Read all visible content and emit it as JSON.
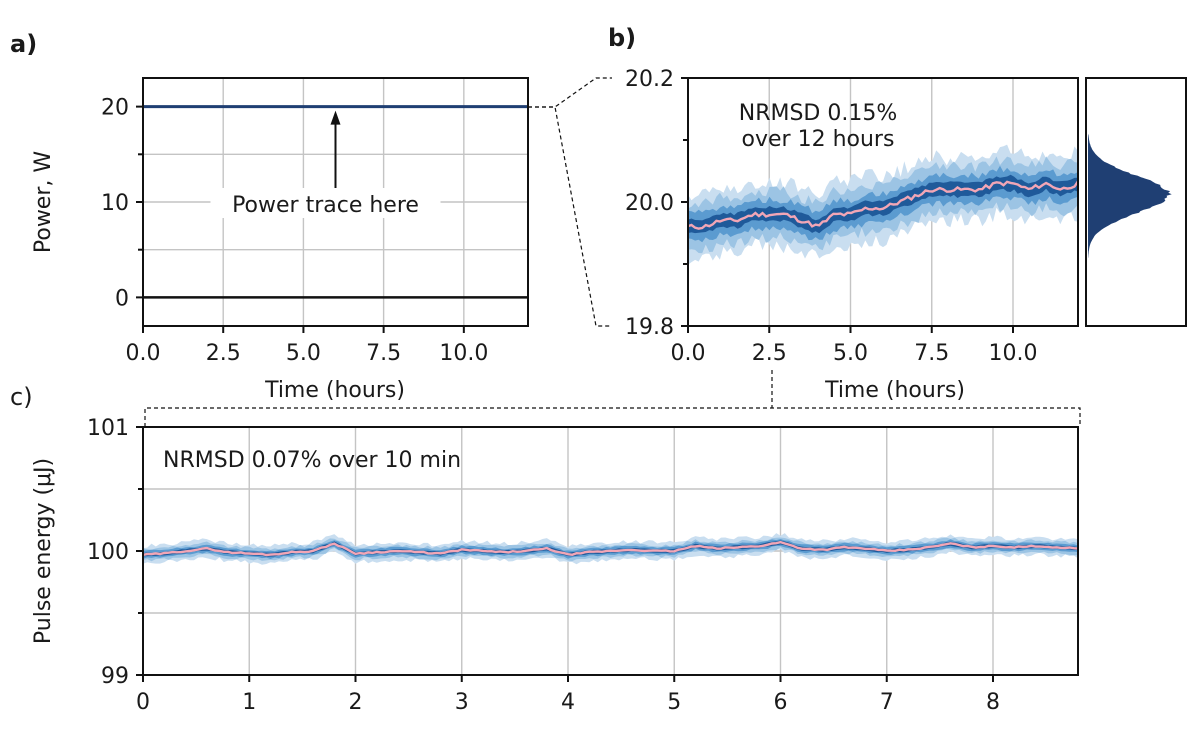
{
  "panels": {
    "a": {
      "letter": "a)"
    },
    "b": {
      "letter": "b)"
    },
    "c": {
      "letter": "c)"
    }
  },
  "chart_data": [
    {
      "id": "a",
      "type": "line",
      "title": "",
      "xlabel": "Time (hours)",
      "ylabel": "Power, W",
      "xlim": [
        0,
        12
      ],
      "ylim": [
        -3,
        23
      ],
      "xticks": [
        0,
        2.5,
        5,
        7.5,
        10
      ],
      "xtick_labels": [
        "0.0",
        "2.5",
        "5.0",
        "7.5",
        "10.0"
      ],
      "yticks": [
        0,
        10,
        20
      ],
      "ytick_labels": [
        "0",
        "10",
        "20"
      ],
      "grid": true,
      "series": [
        {
          "values_constant": 20,
          "color": "#1f3f73"
        },
        {
          "values_constant": 0,
          "color": "#111111"
        }
      ],
      "annotation": "Power trace here",
      "annotation_arrow_x": 6.0,
      "annotation_target_y": 20,
      "annotation_text_y": 10
    },
    {
      "id": "b",
      "type": "line",
      "title": "",
      "xlabel": "Time (hours)",
      "ylabel": "",
      "xlim": [
        0,
        12
      ],
      "ylim": [
        19.8,
        20.2
      ],
      "xticks": [
        0,
        2.5,
        5,
        7.5,
        10
      ],
      "xtick_labels": [
        "0.0",
        "2.5",
        "5.0",
        "7.5",
        "10.0"
      ],
      "yticks": [
        19.8,
        20.0,
        20.2
      ],
      "ytick_labels": [
        "19.8",
        "20.0",
        "20.2"
      ],
      "grid": true,
      "annotation_lines": [
        "NRMSD 0.15%",
        "over 12 hours"
      ],
      "series": [
        {
          "x": [
            0,
            0.5,
            1,
            1.5,
            2,
            2.5,
            3,
            3.5,
            4,
            4.5,
            5,
            5.5,
            6,
            6.5,
            7,
            7.5,
            8,
            8.5,
            9,
            9.5,
            10,
            10.5,
            11,
            11.5,
            12
          ],
          "y": [
            19.96,
            19.96,
            19.97,
            19.97,
            19.98,
            19.98,
            19.98,
            19.97,
            19.96,
            19.98,
            19.98,
            19.99,
            19.99,
            20.0,
            20.01,
            20.02,
            20.02,
            20.02,
            20.02,
            20.03,
            20.03,
            20.02,
            20.03,
            20.02,
            20.03
          ],
          "color": "#f2a6b6"
        }
      ],
      "band_color_inner": "#1f5a9a",
      "band_color_outer": "#c9def0",
      "histogram_color": "#1f3f73",
      "histogram_center": 20.0
    },
    {
      "id": "c",
      "type": "line",
      "title": "",
      "xlabel": "",
      "ylabel": "Pulse energy (μJ)",
      "xlim": [
        0,
        8.8
      ],
      "ylim": [
        99,
        101
      ],
      "xticks": [
        0,
        1,
        2,
        3,
        4,
        5,
        6,
        7,
        8
      ],
      "xtick_labels": [
        "0",
        "1",
        "2",
        "3",
        "4",
        "5",
        "6",
        "7",
        "8"
      ],
      "yticks": [
        99,
        100,
        101
      ],
      "ytick_labels": [
        "99",
        "100",
        "101"
      ],
      "grid": true,
      "annotation": "NRMSD 0.07% over 10 min",
      "series": [
        {
          "x": [
            0,
            0.2,
            0.4,
            0.6,
            0.8,
            1.0,
            1.2,
            1.4,
            1.6,
            1.8,
            2.0,
            2.2,
            2.4,
            2.6,
            2.8,
            3.0,
            3.2,
            3.4,
            3.6,
            3.8,
            4.0,
            4.2,
            4.4,
            4.6,
            4.8,
            5.0,
            5.2,
            5.4,
            5.6,
            5.8,
            6.0,
            6.2,
            6.4,
            6.6,
            6.8,
            7.0,
            7.2,
            7.4,
            7.6,
            7.8,
            8.0,
            8.2,
            8.4,
            8.6,
            8.8
          ],
          "y": [
            99.97,
            99.98,
            100.0,
            100.02,
            99.99,
            99.98,
            99.97,
            99.99,
            100.0,
            100.06,
            99.98,
            99.99,
            100.0,
            99.99,
            99.98,
            100.01,
            100.0,
            99.99,
            100.0,
            100.02,
            99.97,
            99.99,
            100.0,
            100.01,
            100.0,
            100.0,
            100.04,
            100.02,
            100.03,
            100.04,
            100.07,
            100.02,
            100.01,
            100.03,
            100.02,
            100.0,
            100.01,
            100.03,
            100.06,
            100.03,
            100.04,
            100.03,
            100.04,
            100.03,
            100.02
          ],
          "color": "#f2a6b6"
        }
      ],
      "band_color_inner": "#1f5a9a",
      "band_color_outer": "#c9def0"
    }
  ]
}
